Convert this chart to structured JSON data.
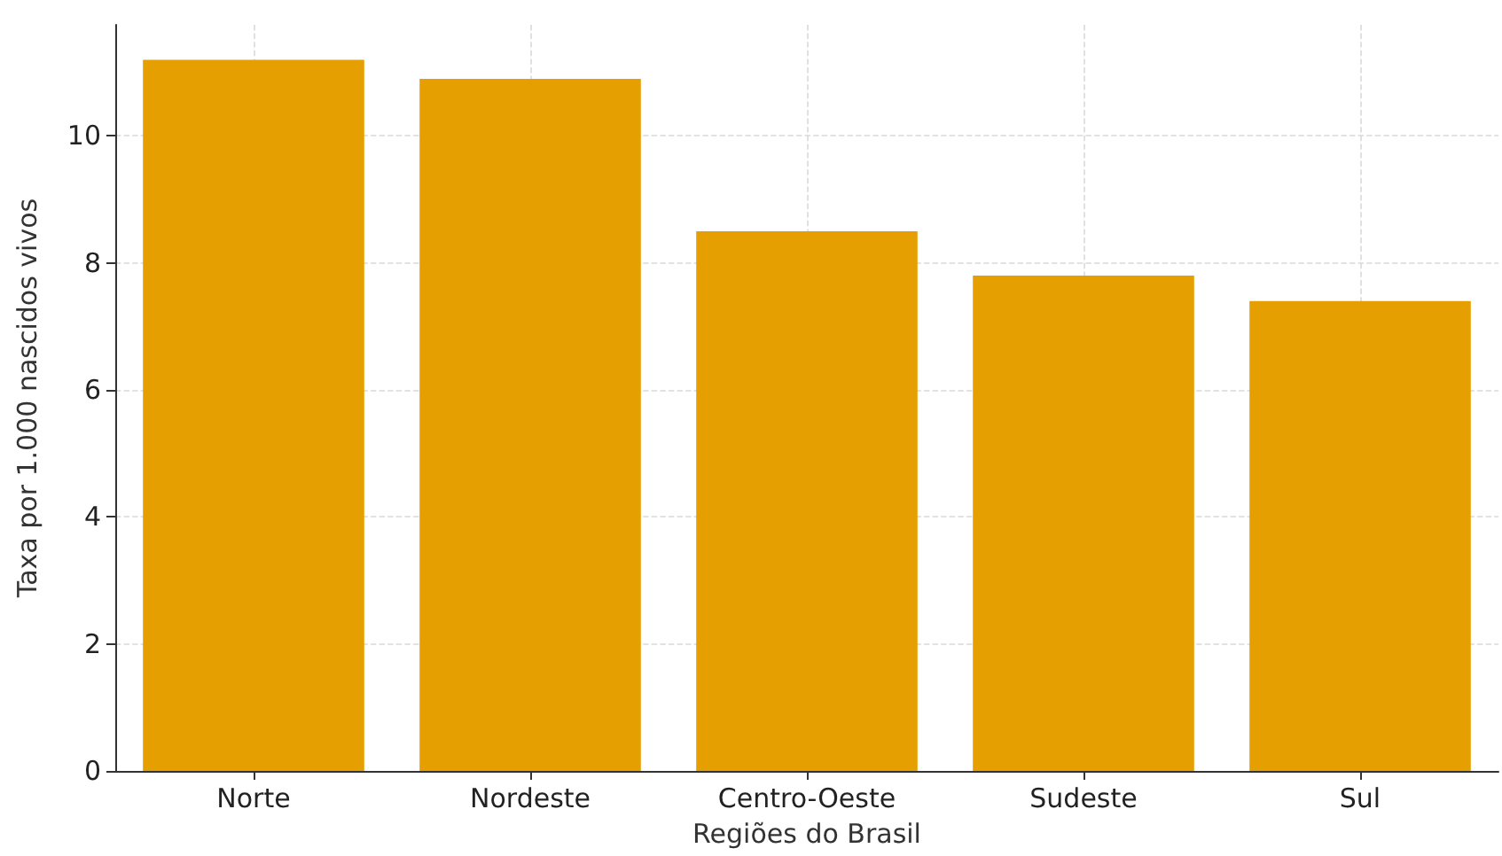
{
  "chart_data": {
    "type": "bar",
    "xlabel": "Regiões do Brasil",
    "ylabel": "Taxa por 1.000 nascidos vivos",
    "categories": [
      "Norte",
      "Nordeste",
      "Centro-Oeste",
      "Sudeste",
      "Sul"
    ],
    "values": [
      11.2,
      10.9,
      8.5,
      7.8,
      7.4
    ],
    "color": "#e69f00",
    "ylim": [
      0,
      11.75
    ],
    "yticks": [
      0,
      2,
      4,
      6,
      8,
      10
    ],
    "grid": true
  }
}
